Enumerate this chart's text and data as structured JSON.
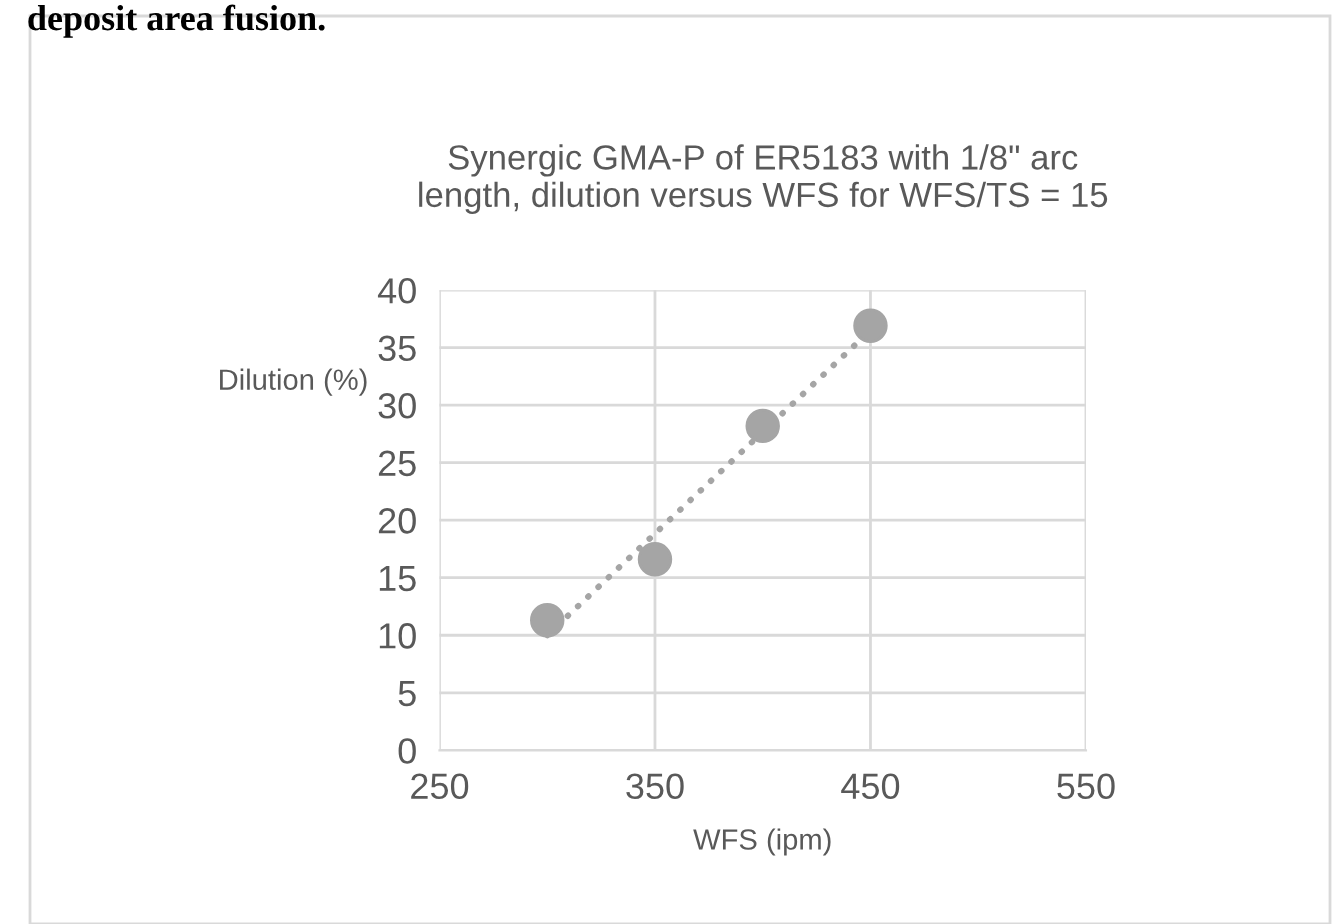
{
  "chart_data": {
    "type": "scatter",
    "title": "Synergic GMA-P of ER5183 with 1/8\" arc\nlength, dilution versus WFS for WFS/TS = 15",
    "xlabel": "WFS (ipm)",
    "ylabel": "Dilution (%)",
    "annotations": [
      "deposit area fusion."
    ],
    "series": [
      {
        "color": "#a5a5a5",
        "x": [
          300,
          350,
          400,
          450
        ],
        "values": [
          11.3,
          16.6,
          28.2,
          36.9
        ],
        "marker": "circle"
      },
      {
        "type": "line",
        "color": "#a5a5a5",
        "x": [
          300,
          450
        ],
        "values": [
          10.0,
          36.5
        ],
        "line_style": "dotted",
        "marker": "none"
      }
    ],
    "xlim": [
      250,
      550
    ],
    "xticks": [
      250,
      350,
      450,
      550
    ],
    "ylim": [
      0,
      40
    ],
    "yticks": [
      0,
      5,
      10,
      15,
      20,
      25,
      30,
      35,
      40
    ],
    "grid": true,
    "legend": false
  }
}
